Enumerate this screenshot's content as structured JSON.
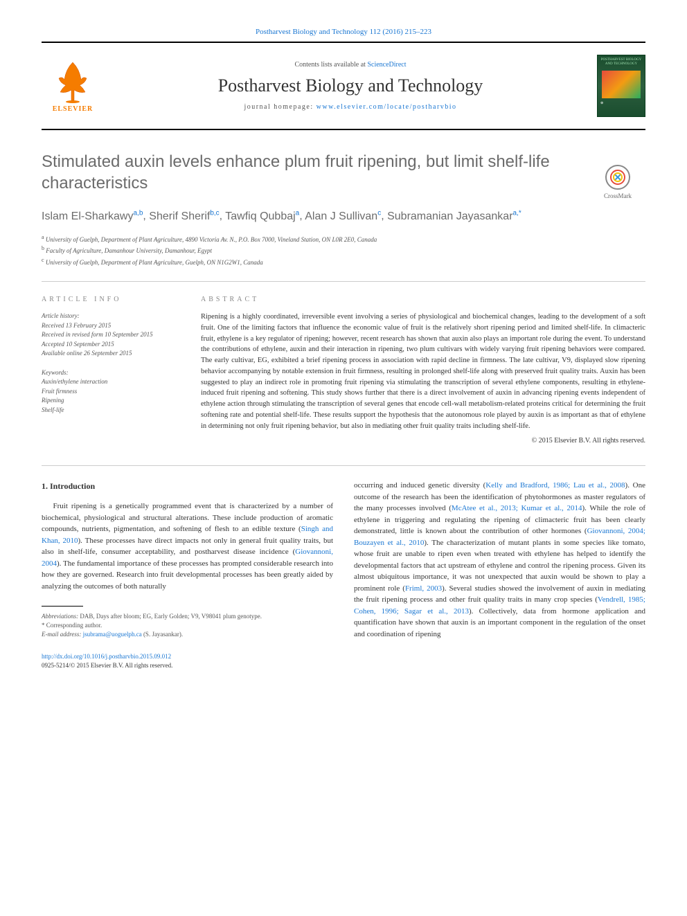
{
  "header": {
    "citation": "Postharvest Biology and Technology 112 (2016) 215–223",
    "contents_prefix": "Contents lists available at ",
    "contents_link": "ScienceDirect",
    "journal_name": "Postharvest Biology and Technology",
    "homepage_prefix": "journal homepage: ",
    "homepage_link": "www.elsevier.com/locate/postharvbio",
    "elsevier": "ELSEVIER",
    "cover_title": "POSTHARVEST BIOLOGY AND TECHNOLOGY",
    "crossmark": "CrossMark"
  },
  "article": {
    "title": "Stimulated auxin levels enhance plum fruit ripening, but limit shelf-life characteristics",
    "authors_html": "Islam El-Sharkawy",
    "authors": [
      {
        "name": "Islam El-Sharkawy",
        "sup": "a,b"
      },
      {
        "name": "Sherif Sherif",
        "sup": "b,c"
      },
      {
        "name": "Tawfiq Qubbaj",
        "sup": "a"
      },
      {
        "name": "Alan J Sullivan",
        "sup": "c"
      },
      {
        "name": "Subramanian Jayasankar",
        "sup": "a,*"
      }
    ],
    "affiliations": [
      {
        "sup": "a",
        "text": "University of Guelph, Department of Plant Agriculture, 4890 Victoria Av. N., P.O. Box 7000, Vineland Station, ON L0R 2E0, Canada"
      },
      {
        "sup": "b",
        "text": "Faculty of Agriculture, Damanhour University, Damanhour, Egypt"
      },
      {
        "sup": "c",
        "text": "University of Guelph, Department of Plant Agriculture, Guelph, ON N1G2W1, Canada"
      }
    ]
  },
  "meta": {
    "info_label": "ARTICLE INFO",
    "abstract_label": "ABSTRACT",
    "history_title": "Article history:",
    "history": [
      "Received 13 February 2015",
      "Received in revised form 10 September 2015",
      "Accepted 10 September 2015",
      "Available online 26 September 2015"
    ],
    "keywords_title": "Keywords:",
    "keywords": [
      "Auxin/ethylene interaction",
      "Fruit firmness",
      "Ripening",
      "Shelf-life"
    ],
    "abstract": "Ripening is a highly coordinated, irreversible event involving a series of physiological and biochemical changes, leading to the development of a soft fruit. One of the limiting factors that influence the economic value of fruit is the relatively short ripening period and limited shelf-life. In climacteric fruit, ethylene is a key regulator of ripening; however, recent research has shown that auxin also plays an important role during the event. To understand the contributions of ethylene, auxin and their interaction in ripening, two plum cultivars with widely varying fruit ripening behaviors were compared. The early cultivar, EG, exhibited a brief ripening process in association with rapid decline in firmness. The late cultivar, V9, displayed slow ripening behavior accompanying by notable extension in fruit firmness, resulting in prolonged shelf-life along with preserved fruit quality traits. Auxin has been suggested to play an indirect role in promoting fruit ripening via stimulating the transcription of several ethylene components, resulting in ethylene-induced fruit ripening and softening. This study shows further that there is a direct involvement of auxin in advancing ripening events independent of ethylene action through stimulating the transcription of several genes that encode cell-wall metabolism-related proteins critical for determining the fruit softening rate and potential shelf-life. These results support the hypothesis that the autonomous role played by auxin is as important as that of ethylene in determining not only fruit ripening behavior, but also in mediating other fruit quality traits including shelf-life.",
    "copyright": "© 2015 Elsevier B.V. All rights reserved."
  },
  "body": {
    "intro_heading": "1. Introduction",
    "col1_p1_a": "Fruit ripening is a genetically programmed event that is characterized by a number of biochemical, physiological and structural alterations. These include production of aromatic compounds, nutrients, pigmentation, and softening of flesh to an edible texture (",
    "col1_link1": "Singh and Khan, 2010",
    "col1_p1_b": "). These processes have direct impacts not only in general fruit quality traits, but also in shelf-life, consumer acceptability, and postharvest disease incidence (",
    "col1_link2": "Giovannoni, 2004",
    "col1_p1_c": "). The fundamental importance of these processes has prompted considerable research into how they are governed. Research into fruit developmental processes has been greatly aided by analyzing the outcomes of both naturally",
    "col2_p1_a": "occurring and induced genetic diversity (",
    "col2_link1": "Kelly and Bradford, 1986; Lau et al., 2008",
    "col2_p1_b": "). One outcome of the research has been the identification of phytohormones as master regulators of the many processes involved (",
    "col2_link2": "McAtee et al., 2013; Kumar et al., 2014",
    "col2_p1_c": "). While the role of ethylene in triggering and regulating the ripening of climacteric fruit has been clearly demonstrated, little is known about the contribution of other hormones (",
    "col2_link3": "Giovannoni, 2004; Bouzayen et al., 2010",
    "col2_p1_d": "). The characterization of mutant plants in some species like tomato, whose fruit are unable to ripen even when treated with ethylene has helped to identify the developmental factors that act upstream of ethylene and control the ripening process. Given its almost ubiquitous importance, it was not unexpected that auxin would be shown to play a prominent role (",
    "col2_link4": "Friml, 2003",
    "col2_p1_e": "). Several studies showed the involvement of auxin in mediating the fruit ripening process and other fruit quality traits in many crop species (",
    "col2_link5": "Vendrell, 1985; Cohen, 1996; Sagar et al., 2013",
    "col2_p1_f": "). Collectively, data from hormone application and quantification have shown that auxin is an important component in the regulation of the onset and coordination of ripening"
  },
  "footnotes": {
    "abbrev_label": "Abbreviations:",
    "abbrev": " DAB, Days after bloom; EG, Early Golden; V9, V98041 plum genotype.",
    "corresp": "* Corresponding author.",
    "email_label": "E-mail address: ",
    "email": "jsubrama@uoguelph.ca",
    "email_suffix": " (S. Jayasankar)."
  },
  "doi": {
    "link": "http://dx.doi.org/10.1016/j.postharvbio.2015.09.012",
    "issn_line": "0925-5214/© 2015 Elsevier B.V. All rights reserved."
  },
  "colors": {
    "link": "#1976d2",
    "gray_heading": "#6b6b6b",
    "elsevier_orange": "#f57c00"
  }
}
